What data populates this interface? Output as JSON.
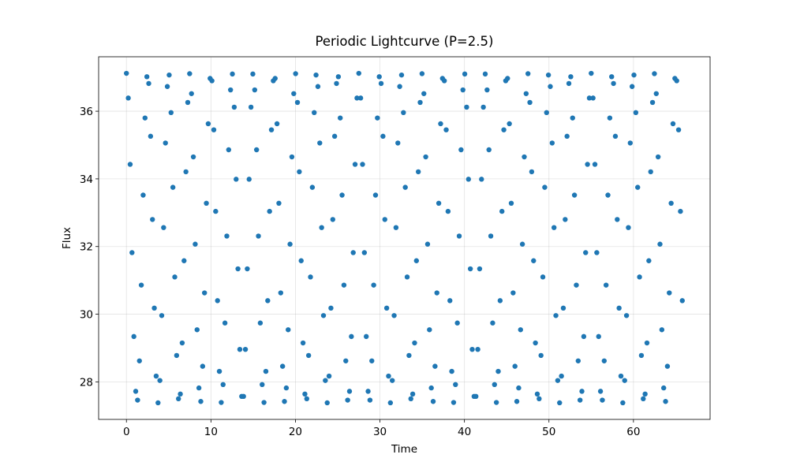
{
  "chart_data": {
    "type": "scatter",
    "title": "Periodic Lightcurve (P=2.5)",
    "xlabel": "Time",
    "ylabel": "Flux",
    "color": "#1f77b4",
    "grid": true,
    "xlim": [
      -3.29,
      69.07
    ],
    "ylim": [
      26.89,
      37.61
    ],
    "xticks": [
      0,
      10,
      20,
      30,
      40,
      50,
      60
    ],
    "yticks": [
      28,
      30,
      32,
      34,
      36
    ],
    "x": [
      0,
      0.22,
      0.44,
      0.66,
      0.88,
      1.1,
      1.32,
      1.54,
      1.76,
      1.98,
      2.2,
      2.42,
      2.64,
      2.86,
      3.08,
      3.3,
      3.52,
      3.74,
      3.96,
      4.18,
      4.4,
      4.62,
      4.84,
      5.06,
      5.28,
      5.5,
      5.72,
      5.94,
      6.16,
      6.38,
      6.6,
      6.82,
      7.04,
      7.26,
      7.48,
      7.7,
      7.92,
      8.14,
      8.36,
      8.58,
      8.8,
      9.02,
      9.24,
      9.46,
      9.68,
      9.9,
      10.12,
      10.34,
      10.56,
      10.78,
      11,
      11.22,
      11.44,
      11.66,
      11.88,
      12.1,
      12.32,
      12.54,
      12.76,
      12.98,
      13.2,
      13.42,
      13.64,
      13.86,
      14.08,
      14.3,
      14.52,
      14.74,
      14.96,
      15.18,
      15.4,
      15.62,
      15.84,
      16.06,
      16.28,
      16.5,
      16.72,
      16.94,
      17.16,
      17.38,
      17.6,
      17.82,
      18.04,
      18.26,
      18.48,
      18.7,
      18.92,
      19.14,
      19.36,
      19.58,
      19.8,
      20.02,
      20.24,
      20.46,
      20.68,
      20.9,
      21.12,
      21.34,
      21.56,
      21.78,
      22,
      22.22,
      22.44,
      22.66,
      22.88,
      23.1,
      23.32,
      23.54,
      23.76,
      23.98,
      24.2,
      24.42,
      24.64,
      24.86,
      25.08,
      25.3,
      25.52,
      25.74,
      25.96,
      26.18,
      26.4,
      26.62,
      26.84,
      27.06,
      27.28,
      27.5,
      27.72,
      27.94,
      28.16,
      28.38,
      28.6,
      28.82,
      29.04,
      29.26,
      29.48,
      29.7,
      29.92,
      30.14,
      30.36,
      30.58,
      30.8,
      31.02,
      31.24,
      31.46,
      31.68,
      31.9,
      32.12,
      32.34,
      32.56,
      32.78,
      33,
      33.22,
      33.44,
      33.66,
      33.88,
      34.1,
      34.32,
      34.54,
      34.76,
      34.98,
      35.2,
      35.42,
      35.64,
      35.86,
      36.08,
      36.3,
      36.52,
      36.74,
      36.96,
      37.18,
      37.4,
      37.62,
      37.84,
      38.06,
      38.28,
      38.5,
      38.72,
      38.94,
      39.16,
      39.38,
      39.6,
      39.82,
      40.04,
      40.26,
      40.48,
      40.7,
      40.92,
      41.14,
      41.36,
      41.58,
      41.8,
      42.02,
      42.24,
      42.46,
      42.68,
      42.9,
      43.12,
      43.34,
      43.56,
      43.78,
      44,
      44.22,
      44.44,
      44.66,
      44.88,
      45.1,
      45.32,
      45.54,
      45.76,
      45.98,
      46.2,
      46.42,
      46.64,
      46.86,
      47.08,
      47.3,
      47.52,
      47.74,
      47.96,
      48.18,
      48.4,
      48.62,
      48.84,
      49.06,
      49.28,
      49.5,
      49.72,
      49.94,
      50.16,
      50.38,
      50.6,
      50.82,
      51.04,
      51.26,
      51.48,
      51.7,
      51.92,
      52.14,
      52.36,
      52.58,
      52.8,
      53.02,
      53.24,
      53.46,
      53.68,
      53.9,
      54.12,
      54.34,
      54.56,
      54.78,
      55,
      55.22,
      55.44,
      55.66,
      55.88,
      56.1,
      56.32,
      56.54,
      56.76,
      56.98,
      57.2,
      57.42,
      57.64,
      57.86,
      58.08,
      58.3,
      58.52,
      58.74,
      58.96,
      59.18,
      59.4,
      59.62,
      59.84,
      60.06,
      60.28,
      60.5,
      60.72,
      60.94,
      61.16,
      61.38,
      61.6,
      61.82,
      62.04,
      62.26,
      62.48,
      62.7,
      62.92,
      63.14,
      63.36,
      63.58,
      63.8,
      64.02,
      64.24,
      64.46,
      64.68,
      64.9,
      65.12,
      65.34,
      65.56,
      65.78
    ],
    "values": [
      37.12,
      36.39,
      34.43,
      31.82,
      29.34,
      27.72,
      27.46,
      28.62,
      30.86,
      33.52,
      35.8,
      37.02,
      36.82,
      35.26,
      32.8,
      30.18,
      28.17,
      27.38,
      28.04,
      29.96,
      32.56,
      35.06,
      36.73,
      37.07,
      35.96,
      33.75,
      31.1,
      28.78,
      27.5,
      27.64,
      29.15,
      31.58,
      34.21,
      36.26,
      37.11,
      36.52,
      34.65,
      32.07,
      29.54,
      27.82,
      27.42,
      28.46,
      30.63,
      33.28,
      35.63,
      36.97,
      36.9,
      35.45,
      33.04,
      30.4,
      28.31,
      27.39,
      27.92,
      29.74,
      32.31,
      34.86,
      36.63,
      37.1,
      36.12,
      33.99,
      31.34,
      28.96,
      27.57,
      27.57,
      28.96,
      31.34,
      33.99,
      36.12,
      37.1,
      36.63,
      34.86,
      32.31,
      29.74,
      27.92,
      27.39,
      28.31,
      30.4,
      33.04,
      35.45,
      36.9,
      36.97,
      35.63,
      33.28,
      30.63,
      28.46,
      27.42,
      27.82,
      29.54,
      32.07,
      34.65,
      36.52,
      37.11,
      36.26,
      34.21,
      31.58,
      29.15,
      27.64,
      27.5,
      28.78,
      31.1,
      33.75,
      35.96,
      37.07,
      36.73,
      35.06,
      32.56,
      29.96,
      28.04,
      27.38,
      28.17,
      30.18,
      32.8,
      35.26,
      36.82,
      37.02,
      35.8,
      33.52,
      30.86,
      28.62,
      27.46,
      27.72,
      29.34,
      31.82,
      34.43,
      36.39,
      37.12,
      36.39,
      34.43,
      31.82,
      29.34,
      27.72,
      27.46,
      28.62,
      30.86,
      33.52,
      35.8,
      37.02,
      36.82,
      35.26,
      32.8,
      30.18,
      28.17,
      27.38,
      28.04,
      29.96,
      32.56,
      35.06,
      36.73,
      37.07,
      35.96,
      33.75,
      31.1,
      28.78,
      27.5,
      27.64,
      29.15,
      31.58,
      34.21,
      36.26,
      37.11,
      36.52,
      34.65,
      32.07,
      29.54,
      27.82,
      27.42,
      28.46,
      30.63,
      33.28,
      35.63,
      36.97,
      36.9,
      35.45,
      33.04,
      30.4,
      28.31,
      27.39,
      27.92,
      29.74,
      32.31,
      34.86,
      36.63,
      37.1,
      36.12,
      33.99,
      31.34,
      28.96,
      27.57,
      27.57,
      28.96,
      31.34,
      33.99,
      36.12,
      37.1,
      36.63,
      34.86,
      32.31,
      29.74,
      27.92,
      27.39,
      28.31,
      30.4,
      33.04,
      35.45,
      36.9,
      36.97,
      35.63,
      33.28,
      30.63,
      28.46,
      27.42,
      27.82,
      29.54,
      32.07,
      34.65,
      36.52,
      37.11,
      36.26,
      34.21,
      31.58,
      29.15,
      27.64,
      27.5,
      28.78,
      31.1,
      33.75,
      35.96,
      37.07,
      36.73,
      35.06,
      32.56,
      29.96,
      28.04,
      27.38,
      28.17,
      30.18,
      32.8,
      35.26,
      36.82,
      37.02,
      35.8,
      33.52,
      30.86,
      28.62,
      27.46,
      27.72,
      29.34,
      31.82,
      34.43,
      36.39,
      37.12,
      36.39,
      34.43,
      31.82,
      29.34,
      27.72,
      27.46,
      28.62,
      30.86,
      33.52,
      35.8,
      37.02,
      36.82,
      35.26,
      32.8,
      30.18,
      28.17,
      27.38,
      28.04,
      29.96,
      32.56,
      35.06,
      36.73,
      37.07,
      35.96,
      33.75,
      31.1,
      28.78,
      27.5,
      27.64,
      29.15,
      31.58,
      34.21,
      36.26,
      37.11,
      36.52,
      34.65,
      32.07,
      29.54,
      27.82,
      27.42,
      28.46,
      30.63,
      33.28,
      35.63,
      36.97,
      36.9,
      35.45,
      33.04,
      30.4
    ]
  }
}
